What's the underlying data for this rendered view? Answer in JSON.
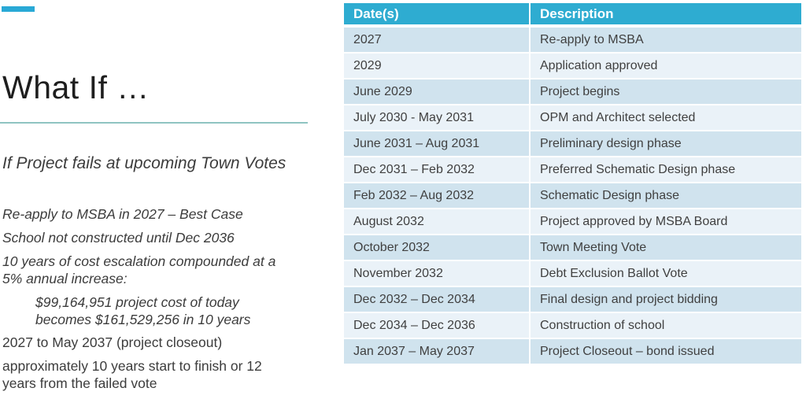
{
  "left_panel": {
    "title": "What If …",
    "subtitle": "If Project fails at upcoming Town Votes",
    "paragraphs": [
      {
        "style": "italic",
        "indent": false,
        "lines": [
          "Re-apply to MSBA in 2027 – Best Case"
        ]
      },
      {
        "style": "italic",
        "indent": false,
        "lines": [
          "School not constructed until Dec 2036"
        ]
      },
      {
        "style": "italic",
        "indent": false,
        "lines": [
          "10 years of cost escalation compounded at a",
          "5% annual increase:"
        ]
      },
      {
        "style": "italic",
        "indent": true,
        "lines": [
          "$99,164,951 project cost of today",
          "becomes $161,529,256 in 10 years"
        ]
      },
      {
        "style": "regular",
        "indent": false,
        "lines": [
          "2027 to May 2037 (project closeout)"
        ]
      },
      {
        "style": "regular",
        "indent": false,
        "lines": [
          "approximately 10 years start to finish or 12",
          "years from the failed vote"
        ]
      }
    ]
  },
  "table": {
    "headers": [
      "Date(s)",
      "Description"
    ],
    "rows": [
      {
        "date": "2027",
        "description": "Re-apply to MSBA"
      },
      {
        "date": "2029",
        "description": "Application approved"
      },
      {
        "date": "June 2029",
        "description": "Project begins"
      },
      {
        "date": "July 2030 - May 2031",
        "description": "OPM and Architect selected"
      },
      {
        "date": "June 2031 – Aug 2031",
        "description": "Preliminary design phase"
      },
      {
        "date": "Dec 2031 – Feb 2032",
        "description": "Preferred Schematic Design phase"
      },
      {
        "date": "Feb 2032 – Aug 2032",
        "description": "Schematic Design phase"
      },
      {
        "date": "August 2032",
        "description": "Project approved by MSBA Board"
      },
      {
        "date": "October 2032",
        "description": "Town Meeting Vote"
      },
      {
        "date": "November 2032",
        "description": "Debt Exclusion Ballot Vote"
      },
      {
        "date": "Dec 2032 – Dec 2034",
        "description": "Final design and project bidding"
      },
      {
        "date": "Dec 2034 – Dec 2036",
        "description": "Construction of school"
      },
      {
        "date": "Jan 2037 – May 2037",
        "description": "Project Closeout – bond issued"
      }
    ]
  },
  "colors": {
    "accent_bar": "#29A9D6",
    "table_header_bg": "#2EACD1",
    "table_header_text": "#FFFFFF",
    "row_odd_bg": "#D0E3EE",
    "row_even_bg": "#EAF2F8",
    "divider_line": "#8FC4C1",
    "body_text": "#3C3C3C",
    "title_text": "#1E1E1E"
  }
}
